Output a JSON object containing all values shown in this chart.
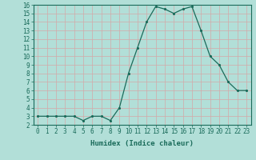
{
  "x": [
    0,
    1,
    2,
    3,
    4,
    5,
    6,
    7,
    8,
    9,
    10,
    11,
    12,
    13,
    14,
    15,
    16,
    17,
    18,
    19,
    20,
    21,
    22,
    23
  ],
  "y": [
    3,
    3,
    3,
    3,
    3,
    2.5,
    3,
    3,
    2.5,
    4,
    8,
    11,
    14,
    15.8,
    15.5,
    15,
    15.5,
    15.8,
    13,
    10,
    9,
    7,
    6,
    6
  ],
  "xlabel": "Humidex (Indice chaleur)",
  "ylim": [
    2,
    16
  ],
  "xlim": [
    -0.5,
    23.5
  ],
  "yticks": [
    2,
    3,
    4,
    5,
    6,
    7,
    8,
    9,
    10,
    11,
    12,
    13,
    14,
    15,
    16
  ],
  "xticks": [
    0,
    1,
    2,
    3,
    4,
    5,
    6,
    7,
    8,
    9,
    10,
    11,
    12,
    13,
    14,
    15,
    16,
    17,
    18,
    19,
    20,
    21,
    22,
    23
  ],
  "line_color": "#1a6b5a",
  "bg_color": "#b2dfd8",
  "grid_color": "#d4a8a8",
  "tick_fontsize": 5.5,
  "label_fontsize": 6.5
}
